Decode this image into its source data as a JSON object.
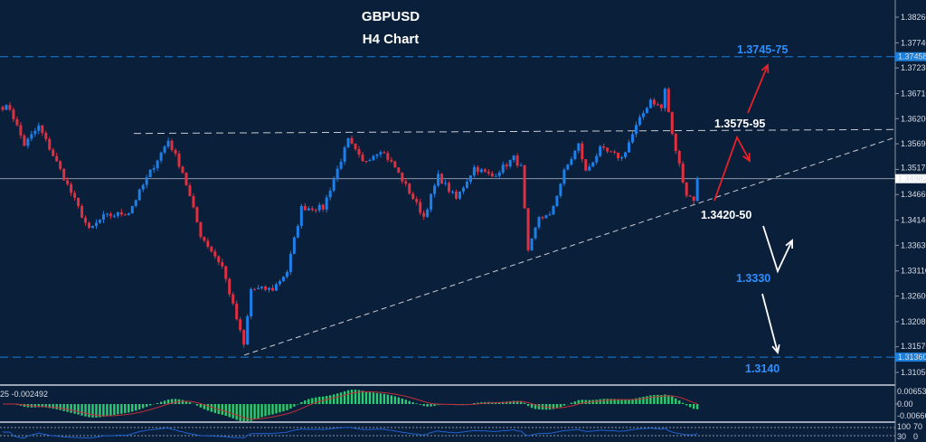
{
  "chart_data": {
    "type": "candlestick",
    "title": "GBPUSD",
    "subtitle": "H4 Chart",
    "symbol": "GBPUSD",
    "timeframe": "H4",
    "ylim": [
      1.309,
      1.385
    ],
    "y_ticks": [
      "1.38260",
      "1.37740",
      "1.37230",
      "1.36710",
      "1.36200",
      "1.35690",
      "1.35170",
      "1.34660",
      "1.34140",
      "1.33630",
      "1.33110",
      "1.32600",
      "1.32080",
      "1.31570",
      "1.31050"
    ],
    "current_price": {
      "value": 1.34982,
      "label": "1.34982"
    },
    "price_path_pivots": [
      [
        0,
        1.3644
      ],
      [
        2,
        1.3641
      ],
      [
        6,
        1.3567
      ],
      [
        10,
        1.3604
      ],
      [
        15,
        1.3531
      ],
      [
        24,
        1.3393
      ],
      [
        28,
        1.3421
      ],
      [
        35,
        1.343
      ],
      [
        41,
        1.3512
      ],
      [
        46,
        1.3576
      ],
      [
        50,
        1.3512
      ],
      [
        55,
        1.3384
      ],
      [
        61,
        1.332
      ],
      [
        67,
        1.316
      ],
      [
        69,
        1.3274
      ],
      [
        75,
        1.3274
      ],
      [
        79,
        1.331
      ],
      [
        83,
        1.3439
      ],
      [
        89,
        1.3439
      ],
      [
        96,
        1.3576
      ],
      [
        100,
        1.3531
      ],
      [
        105,
        1.3558
      ],
      [
        109,
        1.3521
      ],
      [
        117,
        1.3421
      ],
      [
        121,
        1.3503
      ],
      [
        126,
        1.3457
      ],
      [
        131,
        1.3521
      ],
      [
        136,
        1.3503
      ],
      [
        142,
        1.354
      ],
      [
        144,
        1.3521
      ],
      [
        146,
        1.3347
      ],
      [
        149,
        1.3421
      ],
      [
        152,
        1.3421
      ],
      [
        156,
        1.3512
      ],
      [
        160,
        1.3567
      ],
      [
        162,
        1.3512
      ],
      [
        166,
        1.3558
      ],
      [
        172,
        1.354
      ],
      [
        176,
        1.3604
      ],
      [
        180,
        1.3659
      ],
      [
        183,
        1.3641
      ],
      [
        184,
        1.368
      ],
      [
        186,
        1.3586
      ],
      [
        190,
        1.3466
      ],
      [
        192,
        1.3457
      ],
      [
        193,
        1.3498
      ]
    ],
    "horizontal_levels": [
      {
        "price": 1.37458,
        "label": "1.37458",
        "style": "dashed",
        "color": "#1e7fd8"
      },
      {
        "price": 1.3136,
        "label": "1.31360",
        "style": "dashed",
        "color": "#1e7fd8"
      }
    ],
    "resistance_line": {
      "from_price": 1.359,
      "to_price": 1.3598,
      "style": "dashed"
    },
    "trendline": {
      "from_price": 1.314,
      "to_price": 1.3582,
      "style": "dashed"
    },
    "annotations": [
      {
        "text": "1.3745-75",
        "color": "#2f8fff"
      },
      {
        "text": "1.3575-95",
        "color": "#ffffff"
      },
      {
        "text": "1.3420-50",
        "color": "#ffffff"
      },
      {
        "text": "1.3330",
        "color": "#2f8fff"
      },
      {
        "text": "1.3140",
        "color": "#2f8fff"
      }
    ],
    "colors": {
      "background": "#0a1f3a",
      "bull": "#1e7fe8",
      "bear": "#e0303f",
      "grid_line": "#8a96a8",
      "up_arrow": "#e8202a",
      "down_arrow": "#ffffff"
    },
    "macd_panel": {
      "label": "25 -0.002492",
      "y_ticks": [
        "0.006531",
        "0.00",
        "-0.006664"
      ],
      "histogram_color": "#2ecc71",
      "signal_color": "#c0303a"
    },
    "oscillator_panel": {
      "y_ticks": [
        "100",
        "70",
        "30",
        "0"
      ],
      "line_color": "#2060d0"
    }
  }
}
